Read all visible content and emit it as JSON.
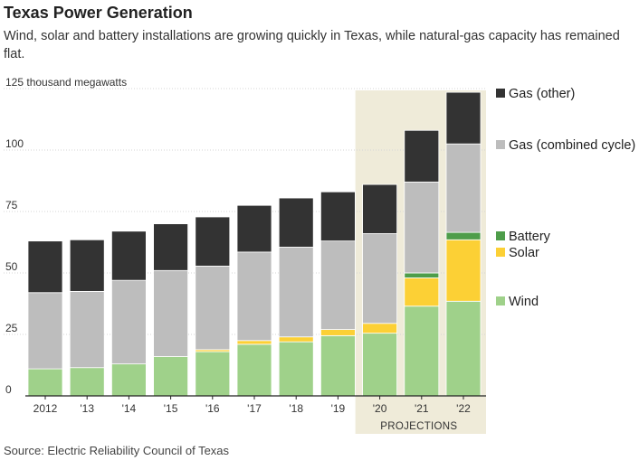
{
  "title": "Texas Power Generation",
  "subtitle": "Wind, solar and battery installations are growing quickly in Texas, while natural-gas capacity has remained flat.",
  "source": "Source: Electric Reliability Council of Texas",
  "chart_data": {
    "type": "bar",
    "stacked": true,
    "unit_label": "125 thousand megawatts",
    "categories": [
      "2012",
      "'13",
      "'14",
      "'15",
      "'16",
      "'17",
      "'18",
      "'19",
      "'20",
      "'21",
      "'22"
    ],
    "yticks": [
      "0",
      "25",
      "50",
      "75",
      "100",
      ""
    ],
    "ylim": [
      0,
      125
    ],
    "grid": true,
    "highlight": {
      "label": "PROJECTIONS",
      "categories": [
        "'20",
        "'21",
        "'22"
      ]
    },
    "legend_position": "right",
    "series": [
      {
        "name": "Wind",
        "color": "#9fd18a",
        "values": [
          11,
          11.5,
          13,
          16,
          18,
          21,
          22,
          24.5,
          25.5,
          36.5,
          38.5
        ]
      },
      {
        "name": "Solar",
        "color": "#fcd035",
        "values": [
          0,
          0,
          0,
          0,
          0.8,
          1.5,
          2,
          2.5,
          4,
          11.5,
          25
        ]
      },
      {
        "name": "Battery",
        "color": "#4e9d4a",
        "values": [
          0,
          0,
          0,
          0,
          0,
          0,
          0,
          0,
          0,
          2,
          3
        ]
      },
      {
        "name": "Gas (combined cycle)",
        "color": "#bdbdbd",
        "values": [
          31,
          31,
          34,
          35,
          34,
          36,
          36.5,
          36,
          36.5,
          37,
          36
        ]
      },
      {
        "name": "Gas (other)",
        "color": "#333333",
        "values": [
          21,
          21,
          20,
          19,
          20,
          19,
          20,
          20,
          20,
          21,
          21
        ]
      }
    ]
  }
}
